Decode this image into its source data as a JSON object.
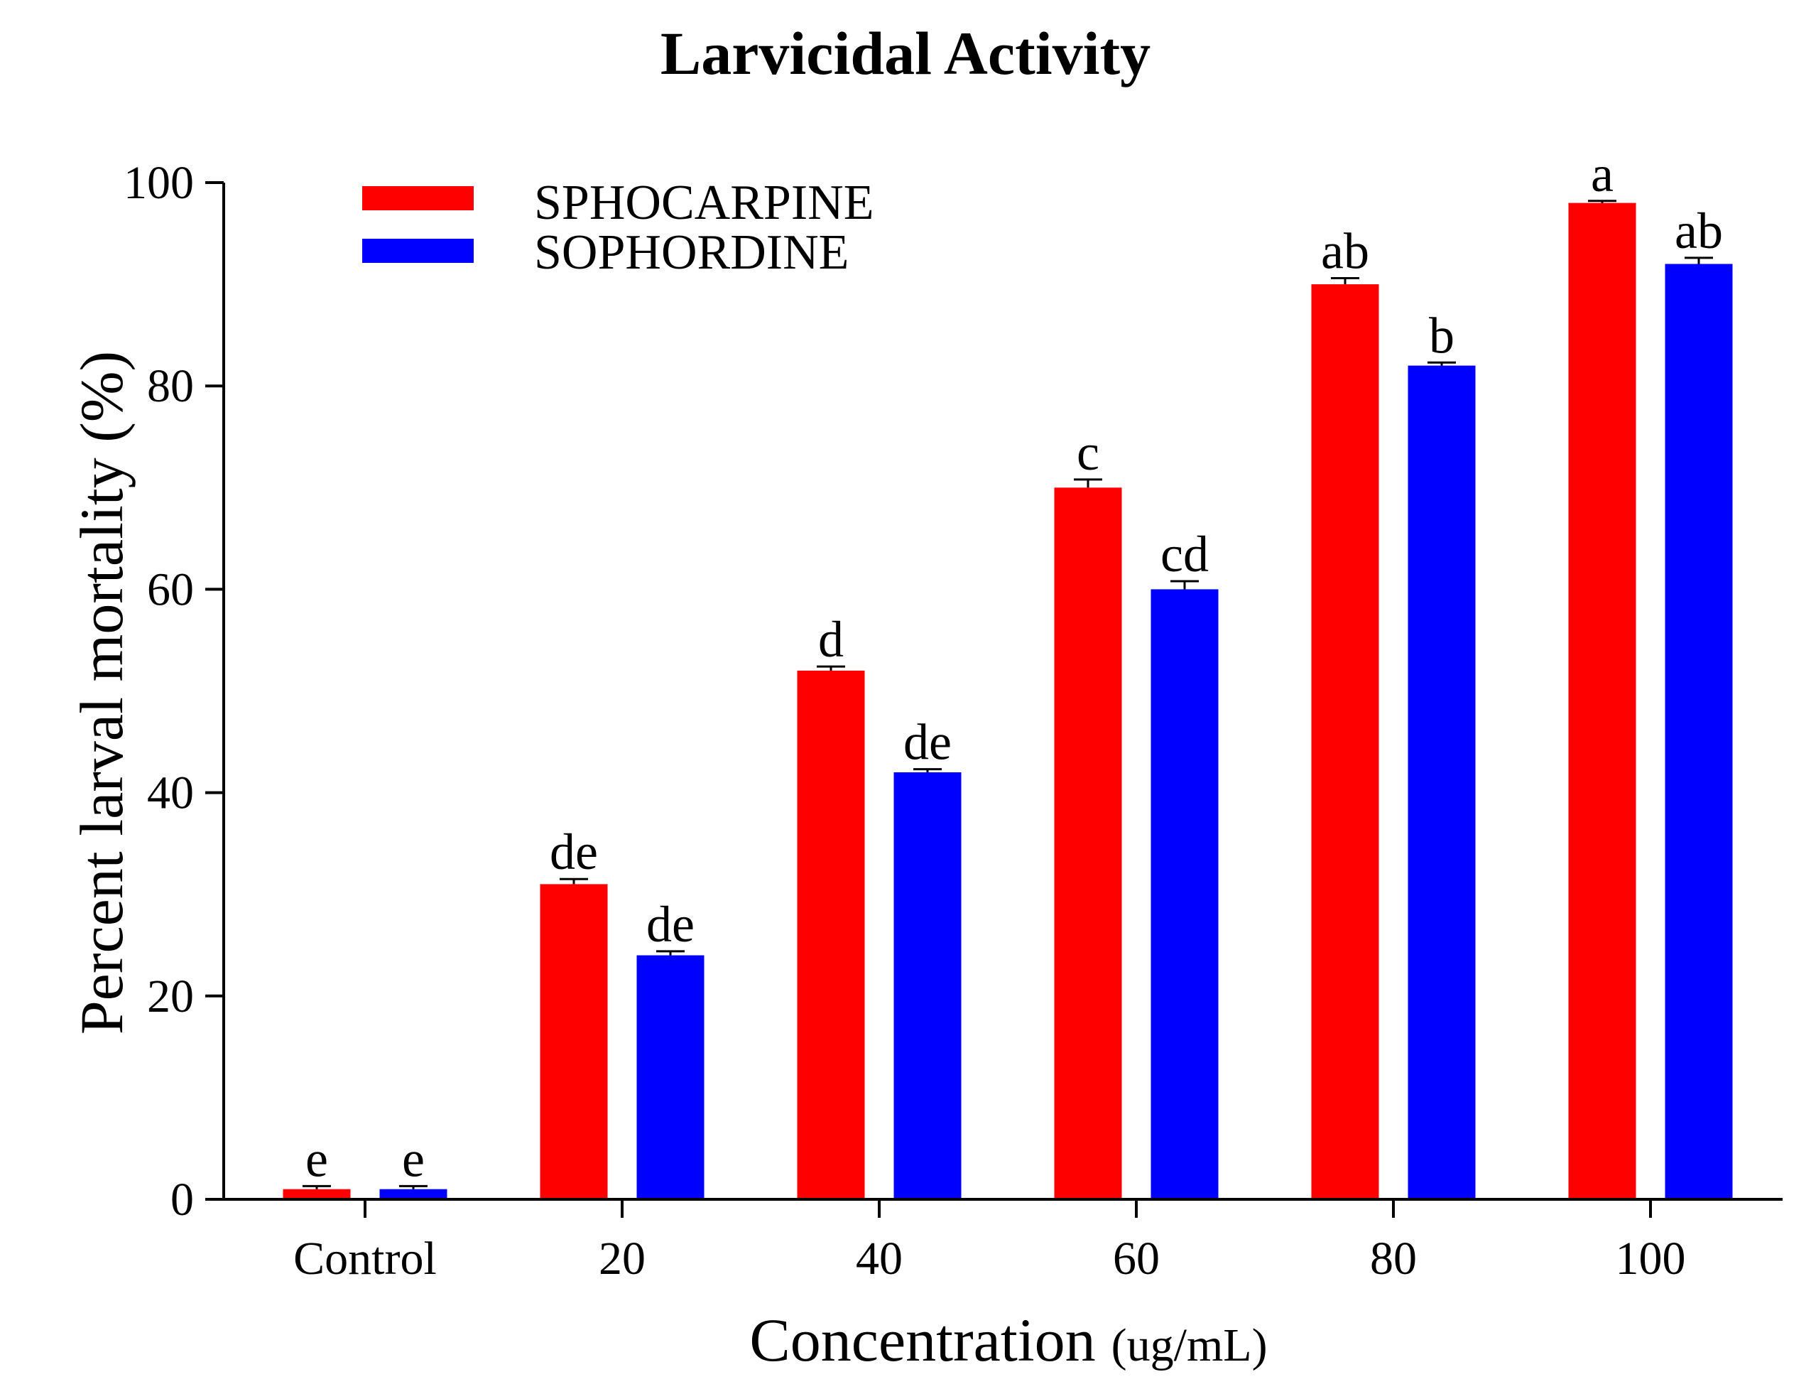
{
  "chart_data": {
    "type": "bar",
    "title": "Larvicidal Activity",
    "xlabel": "Concentration",
    "xlabel_unit": "(ug/mL)",
    "ylabel": "Percent larval mortality (%)",
    "ylim": [
      0,
      100
    ],
    "yticks": [
      0,
      20,
      40,
      60,
      80,
      100
    ],
    "categories": [
      "Control",
      "20",
      "40",
      "60",
      "80",
      "100"
    ],
    "legend_position": "top-left",
    "series": [
      {
        "name": "SPHOCARPINE",
        "color": "#ff0000",
        "values": [
          1,
          31,
          52,
          70,
          90,
          98
        ],
        "errors": [
          0.3,
          0.5,
          0.4,
          0.8,
          0.6,
          0.2
        ],
        "labels": [
          "e",
          "de",
          "d",
          "c",
          "ab",
          "a"
        ]
      },
      {
        "name": "SOPHORDINE",
        "color": "#0000ff",
        "values": [
          1,
          24,
          42,
          60,
          82,
          92
        ],
        "errors": [
          0.3,
          0.4,
          0.3,
          0.8,
          0.3,
          0.6
        ],
        "labels": [
          "e",
          "de",
          "de",
          "cd",
          "b",
          "ab"
        ]
      }
    ]
  }
}
